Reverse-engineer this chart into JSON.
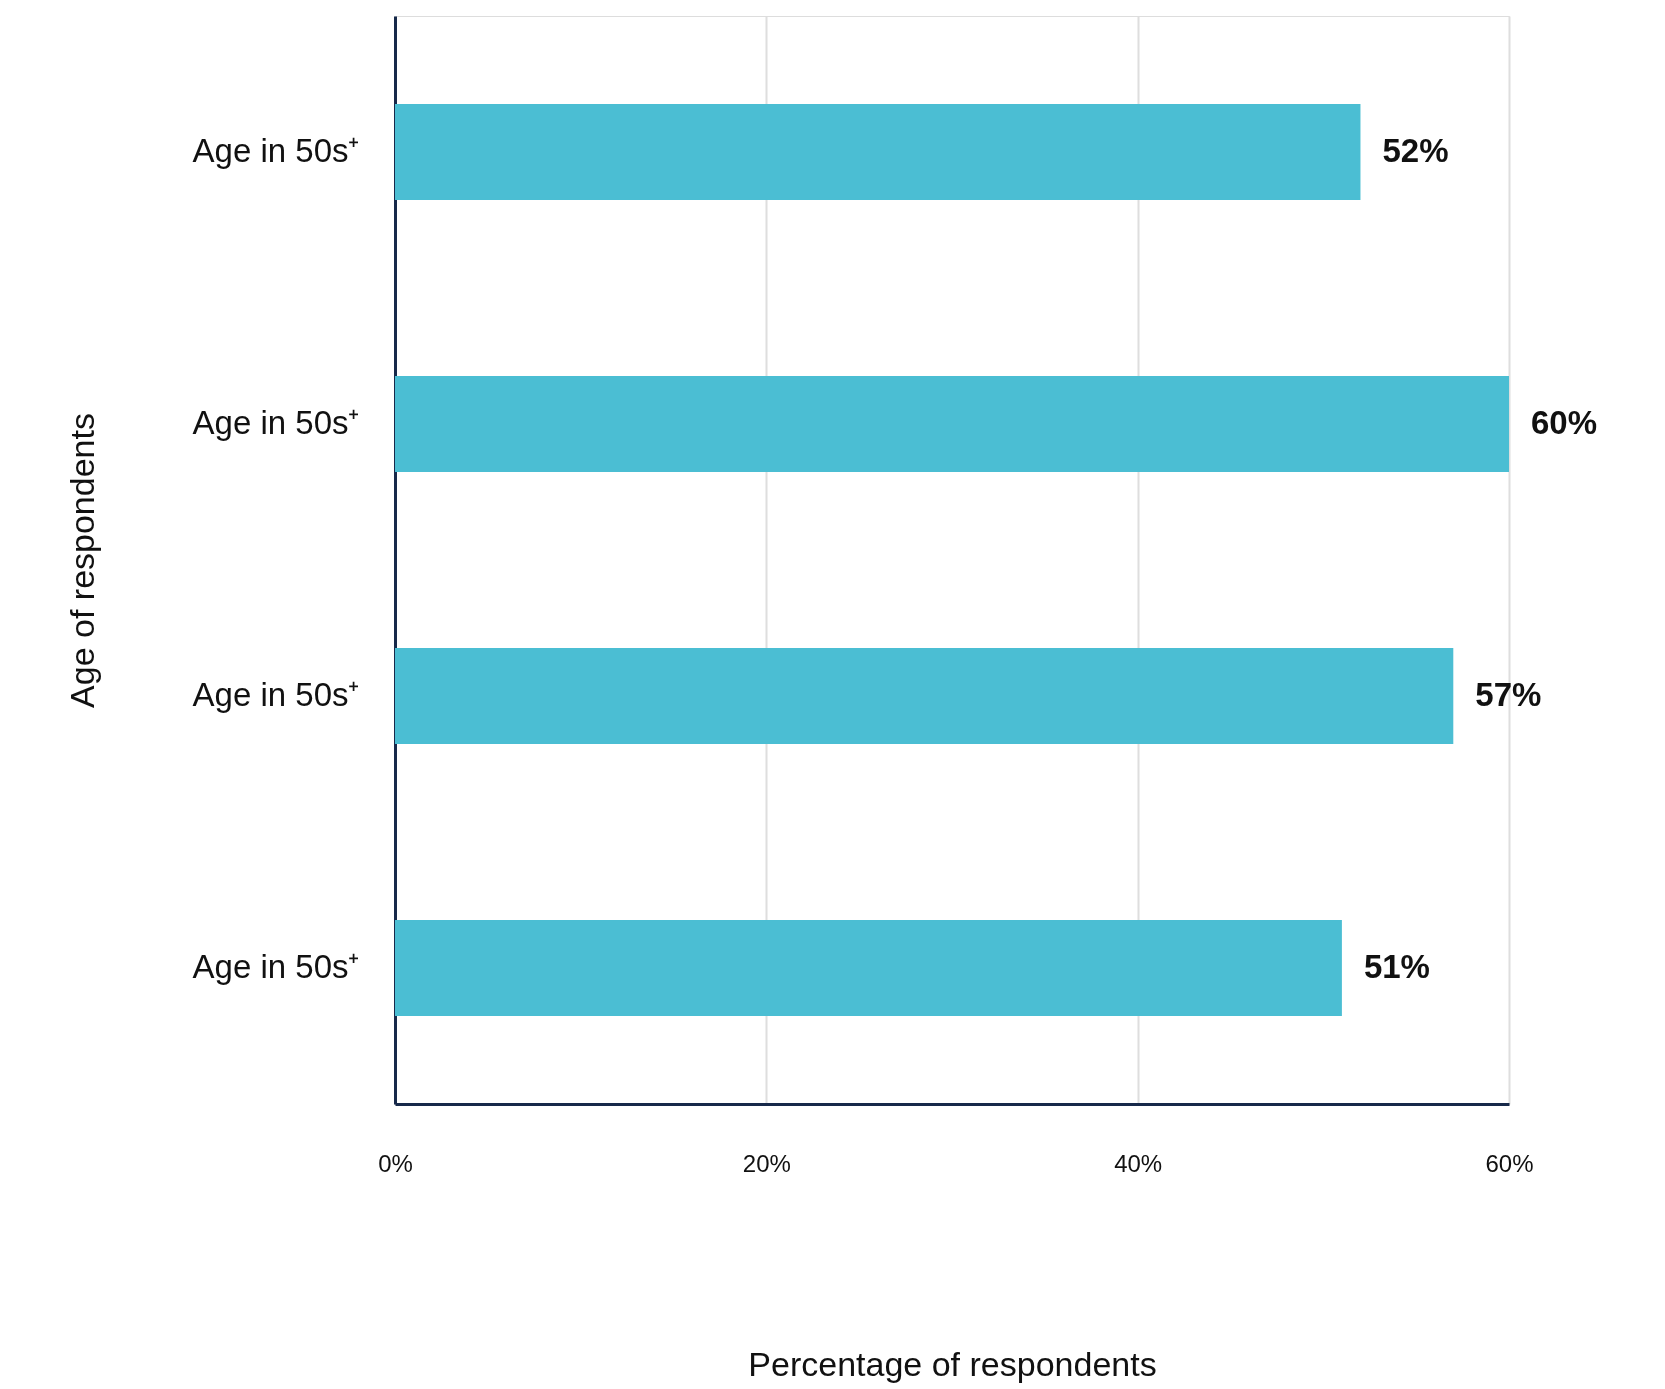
{
  "chart_data": {
    "type": "bar",
    "orientation": "horizontal",
    "categories": [
      "Age in 50s⁺",
      "Age in 50s⁺",
      "Age in 50s⁺",
      "Age in 50s⁺"
    ],
    "values": [
      52,
      60,
      57,
      51
    ],
    "color": "#4bbed3",
    "value_labels": [
      "52%",
      "60%",
      "57%",
      "51%"
    ],
    "xlim": [
      0,
      60
    ],
    "xticks": [
      {
        "value": 0,
        "label": "0%"
      },
      {
        "value": 20,
        "label": "20%"
      },
      {
        "value": 40,
        "label": "40%"
      },
      {
        "value": 60,
        "label": "60%"
      }
    ],
    "xlabel": "Percentage of respondents",
    "ylabel": "Age of respondents",
    "grid": "x"
  }
}
